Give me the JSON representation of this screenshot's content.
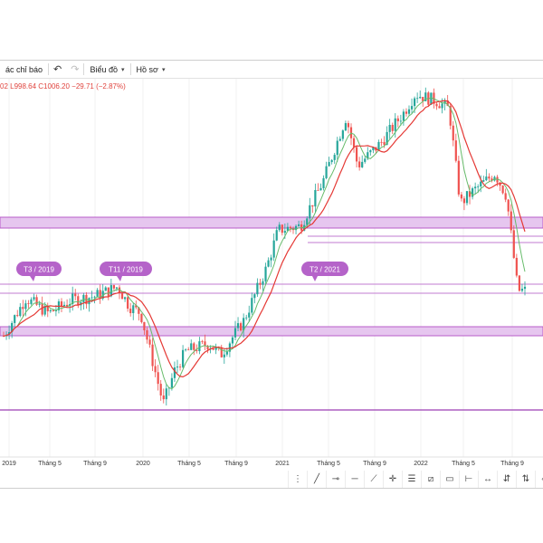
{
  "toolbar": {
    "indicators_label": "ác chỉ báo",
    "chart_label": "Biểu đồ",
    "profile_label": "Hồ sơ"
  },
  "ohlc": "02  L998.64  C1006.20  −29.71 (−2.87%)",
  "colors": {
    "up": "#26a69a",
    "down": "#ef5350",
    "ma_fast": "#e53935",
    "ma_slow": "#66bb6a",
    "zone": "#c87bd6",
    "bubble": "#b563c9"
  },
  "annotations": [
    {
      "text": "T3 / 2019"
    },
    {
      "text": "T11 / 2019"
    },
    {
      "text": "T2 / 2021"
    }
  ],
  "x_axis": {
    "labels": [
      "2019",
      "Tháng 5",
      "Tháng 9",
      "2020",
      "Tháng 5",
      "Tháng 9",
      "2021",
      "Tháng 5",
      "Tháng 9",
      "2022",
      "Tháng 5",
      "Tháng 9"
    ]
  },
  "chart_data": {
    "type": "candlestick",
    "title": "",
    "xlabel": "",
    "ylabel": "",
    "x_start": "2019-01",
    "x_end": "2022-10",
    "weekly_close_points": [
      [
        "2019-01",
        880
      ],
      [
        "2019-03",
        980
      ],
      [
        "2019-05",
        940
      ],
      [
        "2019-07",
        975
      ],
      [
        "2019-09",
        985
      ],
      [
        "2019-11",
        1010
      ],
      [
        "2019-12",
        960
      ],
      [
        "2020-01",
        940
      ],
      [
        "2020-03",
        700
      ],
      [
        "2020-04",
        790
      ],
      [
        "2020-05",
        840
      ],
      [
        "2020-07",
        860
      ],
      [
        "2020-08",
        830
      ],
      [
        "2020-10",
        920
      ],
      [
        "2020-12",
        1060
      ],
      [
        "2021-01",
        1160
      ],
      [
        "2021-03",
        1170
      ],
      [
        "2021-05",
        1290
      ],
      [
        "2021-07",
        1460
      ],
      [
        "2021-08",
        1330
      ],
      [
        "2021-10",
        1390
      ],
      [
        "2021-12",
        1470
      ],
      [
        "2022-01",
        1520
      ],
      [
        "2022-03",
        1500
      ],
      [
        "2022-04",
        1480
      ],
      [
        "2022-05",
        1230
      ],
      [
        "2022-06",
        1260
      ],
      [
        "2022-08",
        1310
      ],
      [
        "2022-09",
        1250
      ],
      [
        "2022-10",
        1000
      ]
    ],
    "horizontal_zones": [
      "1230–1250",
      "~1195",
      "~1175",
      "~1045–1055",
      "~930–945"
    ],
    "horizontal_lines": [
      "~630"
    ]
  }
}
